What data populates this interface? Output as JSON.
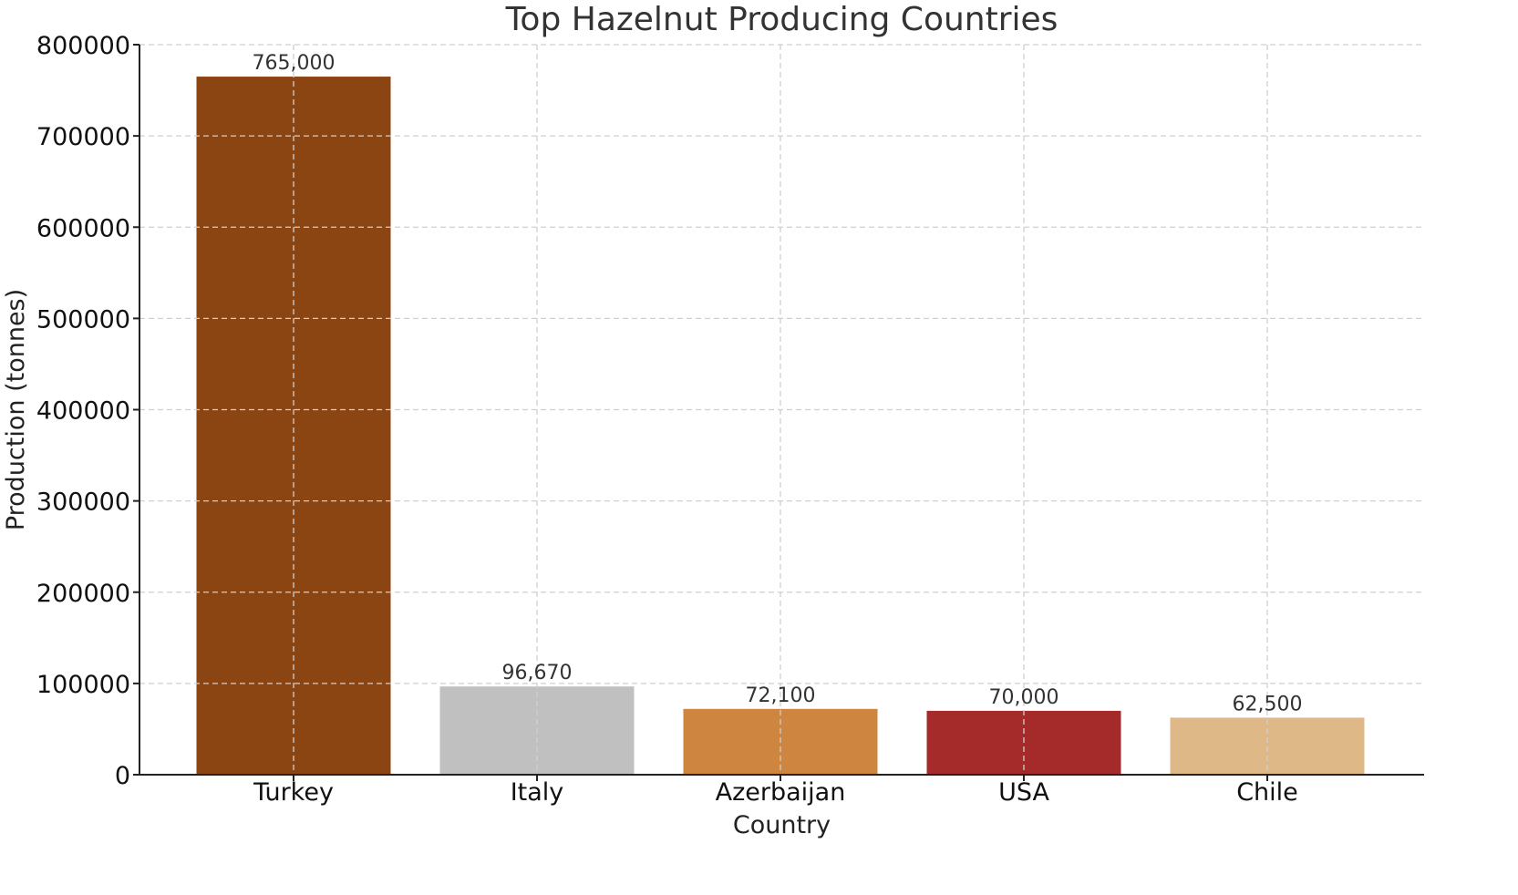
{
  "chart_data": {
    "type": "bar",
    "title": "Top Hazelnut Producing Countries",
    "xlabel": "Country",
    "ylabel": "Production (tonnes)",
    "categories": [
      "Turkey",
      "Italy",
      "Azerbaijan",
      "USA",
      "Chile"
    ],
    "values": [
      765000,
      96670,
      72100,
      70000,
      62500
    ],
    "value_labels": [
      "765,000",
      "96,670",
      "72,100",
      "70,000",
      "62,500"
    ],
    "colors": [
      "#8B4513",
      "#C0C0C0",
      "#CD853F",
      "#A52A2A",
      "#DEB887"
    ],
    "ylim": [
      0,
      800000
    ],
    "yticks": [
      0,
      100000,
      200000,
      300000,
      400000,
      500000,
      600000,
      700000,
      800000
    ],
    "ytick_labels": [
      "0",
      "100000",
      "200000",
      "300000",
      "400000",
      "500000",
      "600000",
      "700000",
      "800000"
    ],
    "grid": true,
    "legend": "none"
  }
}
